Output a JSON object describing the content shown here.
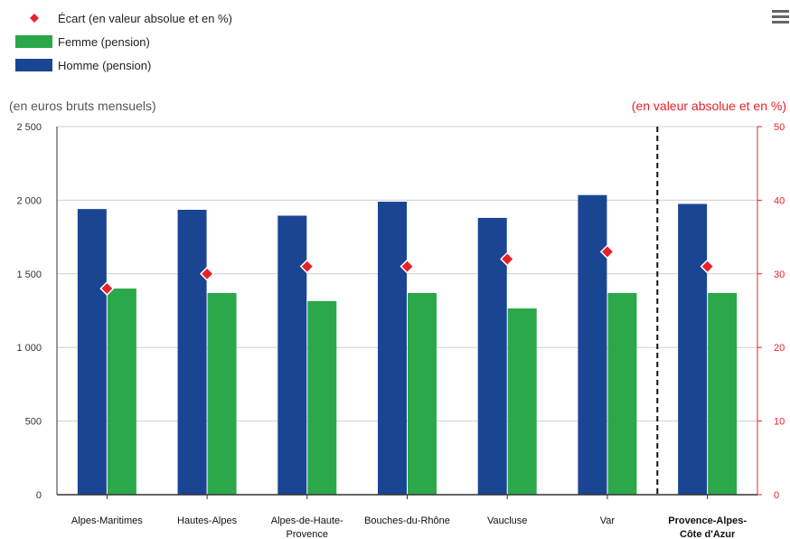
{
  "chart_data": {
    "type": "bar",
    "categories": [
      [
        "Alpes-Maritimes"
      ],
      [
        "Hautes-Alpes"
      ],
      [
        "Alpes-de-Haute-",
        "Provence"
      ],
      [
        "Bouches-du-Rhône"
      ],
      [
        "Vaucluse"
      ],
      [
        "Var"
      ],
      [
        "Provence-Alpes-",
        "Côte d'Azur"
      ]
    ],
    "highlight_category_index": 6,
    "series": [
      {
        "name": "Homme (pension)",
        "type": "bar",
        "axis": "left",
        "color": "#1a4592",
        "values": [
          1940,
          1935,
          1895,
          1990,
          1880,
          2035,
          1975
        ]
      },
      {
        "name": "Femme (pension)",
        "type": "bar",
        "axis": "left",
        "color": "#2ba84a",
        "values": [
          1400,
          1370,
          1315,
          1370,
          1265,
          1370,
          1370
        ]
      },
      {
        "name": "Écart (en valeur absolue et en %)",
        "type": "scatter",
        "marker": "diamond",
        "axis": "right",
        "color": "#e8202a",
        "values": [
          28,
          30,
          31,
          31,
          32,
          33,
          31
        ]
      }
    ],
    "legend_order": [
      2,
      1,
      0
    ],
    "y_left": {
      "label": "(en euros bruts mensuels)",
      "range": [
        0,
        2500
      ],
      "ticks": [
        0,
        500,
        1000,
        1500,
        2000,
        2500
      ],
      "tick_labels": [
        "0",
        "500",
        "1 000",
        "1 500",
        "2 000",
        "2 500"
      ]
    },
    "y_right": {
      "label": "(en valeur absolue et en %)",
      "range": [
        0,
        50
      ],
      "ticks": [
        0,
        10,
        20,
        30,
        40,
        50
      ],
      "tick_labels": [
        "0",
        "10",
        "20",
        "30",
        "40",
        "50"
      ],
      "color": "#e8202a"
    },
    "grid": true,
    "separator_before_category_index": 6,
    "legend_position": "top-left"
  },
  "toolbar": {
    "menu_icon": "hamburger-menu-icon"
  }
}
